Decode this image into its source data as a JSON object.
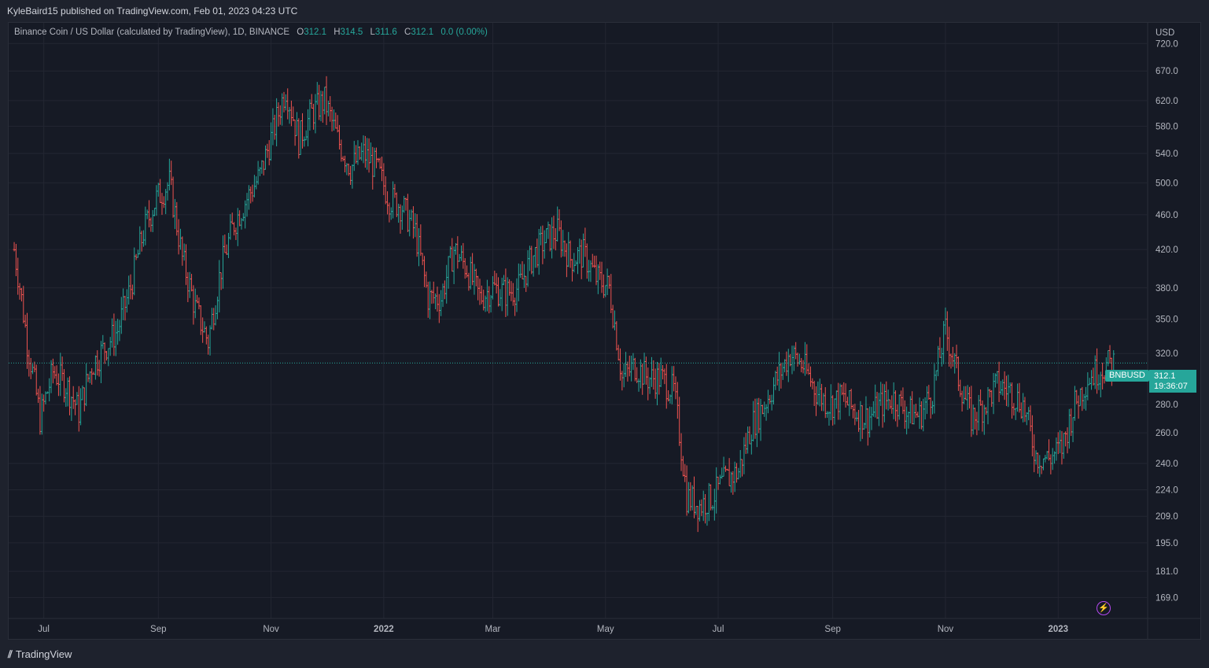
{
  "header": {
    "publisher_text": "KyleBaird15 published on TradingView.com, Feb 01, 2023 04:23 UTC"
  },
  "legend": {
    "instrument": "Binance Coin / US Dollar (calculated by TradingView), 1D, BINANCE",
    "o_label": "O",
    "o_value": "312.1",
    "h_label": "H",
    "h_value": "314.5",
    "l_label": "L",
    "l_value": "311.6",
    "c_label": "C",
    "c_value": "312.1",
    "change": "0.0 (0.00%)"
  },
  "price_label": {
    "ticker": "BNBUSD",
    "price": "312.1",
    "countdown": "19:36:07"
  },
  "footer": {
    "brand": "TradingView",
    "logo": "tradingview-logo-icon"
  },
  "colors": {
    "background": "#161a25",
    "grid": "#232632",
    "up": "#26a69a",
    "down": "#ef5350",
    "text": "#b2b5be",
    "bolt": "#b449ef"
  },
  "chart_data": {
    "type": "ohlc",
    "currency_label": "USD",
    "scale": "log",
    "ylim": [
      160,
      760
    ],
    "y_ticks": [
      "720.0",
      "670.0",
      "620.0",
      "580.0",
      "540.0",
      "500.0",
      "460.0",
      "420.0",
      "380.0",
      "350.0",
      "320.0",
      "280.0",
      "260.0",
      "240.0",
      "224.0",
      "209.0",
      "195.0",
      "181.0",
      "169.0"
    ],
    "x_ticks": [
      "Jul",
      "Sep",
      "Nov",
      "2022",
      "Mar",
      "May",
      "Jul",
      "Sep",
      "Nov",
      "2023"
    ],
    "last_price": 312.1,
    "series": [
      {
        "values": [
          [
            "2021-06-15",
            420
          ],
          [
            "2021-06-22",
            330
          ],
          [
            "2021-06-29",
            270
          ],
          [
            "2021-07-06",
            305
          ],
          [
            "2021-07-13",
            295
          ],
          [
            "2021-07-20",
            275
          ],
          [
            "2021-07-27",
            310
          ],
          [
            "2021-08-03",
            325
          ],
          [
            "2021-08-10",
            340
          ],
          [
            "2021-08-17",
            380
          ],
          [
            "2021-08-24",
            440
          ],
          [
            "2021-08-31",
            480
          ],
          [
            "2021-09-07",
            500
          ],
          [
            "2021-09-14",
            410
          ],
          [
            "2021-09-21",
            360
          ],
          [
            "2021-09-28",
            330
          ],
          [
            "2021-10-05",
            400
          ],
          [
            "2021-10-12",
            450
          ],
          [
            "2021-10-19",
            480
          ],
          [
            "2021-10-26",
            510
          ],
          [
            "2021-11-02",
            570
          ],
          [
            "2021-11-09",
            640
          ],
          [
            "2021-11-16",
            560
          ],
          [
            "2021-11-23",
            600
          ],
          [
            "2021-11-30",
            620
          ],
          [
            "2021-12-07",
            560
          ],
          [
            "2021-12-14",
            520
          ],
          [
            "2021-12-21",
            540
          ],
          [
            "2021-12-28",
            520
          ],
          [
            "2022-01-04",
            480
          ],
          [
            "2022-01-11",
            470
          ],
          [
            "2022-01-18",
            440
          ],
          [
            "2022-01-25",
            370
          ],
          [
            "2022-02-01",
            370
          ],
          [
            "2022-02-08",
            420
          ],
          [
            "2022-02-15",
            400
          ],
          [
            "2022-02-22",
            370
          ],
          [
            "2022-03-01",
            380
          ],
          [
            "2022-03-08",
            375
          ],
          [
            "2022-03-15",
            380
          ],
          [
            "2022-03-22",
            410
          ],
          [
            "2022-03-29",
            430
          ],
          [
            "2022-04-05",
            440
          ],
          [
            "2022-04-12",
            410
          ],
          [
            "2022-04-19",
            415
          ],
          [
            "2022-04-26",
            390
          ],
          [
            "2022-05-03",
            380
          ],
          [
            "2022-05-10",
            300
          ],
          [
            "2022-05-17",
            310
          ],
          [
            "2022-05-24",
            300
          ],
          [
            "2022-05-31",
            300
          ],
          [
            "2022-06-07",
            290
          ],
          [
            "2022-06-14",
            220
          ],
          [
            "2022-06-21",
            215
          ],
          [
            "2022-06-28",
            220
          ],
          [
            "2022-07-05",
            230
          ],
          [
            "2022-07-12",
            235
          ],
          [
            "2022-07-19",
            265
          ],
          [
            "2022-07-26",
            280
          ],
          [
            "2022-08-02",
            300
          ],
          [
            "2022-08-09",
            320
          ],
          [
            "2022-08-16",
            310
          ],
          [
            "2022-08-23",
            290
          ],
          [
            "2022-08-30",
            280
          ],
          [
            "2022-09-06",
            285
          ],
          [
            "2022-09-13",
            275
          ],
          [
            "2022-09-20",
            270
          ],
          [
            "2022-09-27",
            280
          ],
          [
            "2022-10-04",
            285
          ],
          [
            "2022-10-11",
            275
          ],
          [
            "2022-10-18",
            272
          ],
          [
            "2022-10-25",
            290
          ],
          [
            "2022-11-01",
            340
          ],
          [
            "2022-11-08",
            300
          ],
          [
            "2022-11-15",
            270
          ],
          [
            "2022-11-22",
            280
          ],
          [
            "2022-11-29",
            295
          ],
          [
            "2022-12-06",
            290
          ],
          [
            "2022-12-13",
            280
          ],
          [
            "2022-12-20",
            245
          ],
          [
            "2022-12-27",
            243
          ],
          [
            "2023-01-03",
            250
          ],
          [
            "2023-01-10",
            280
          ],
          [
            "2023-01-17",
            300
          ],
          [
            "2023-01-24",
            308
          ],
          [
            "2023-01-31",
            312.1
          ]
        ]
      }
    ]
  }
}
